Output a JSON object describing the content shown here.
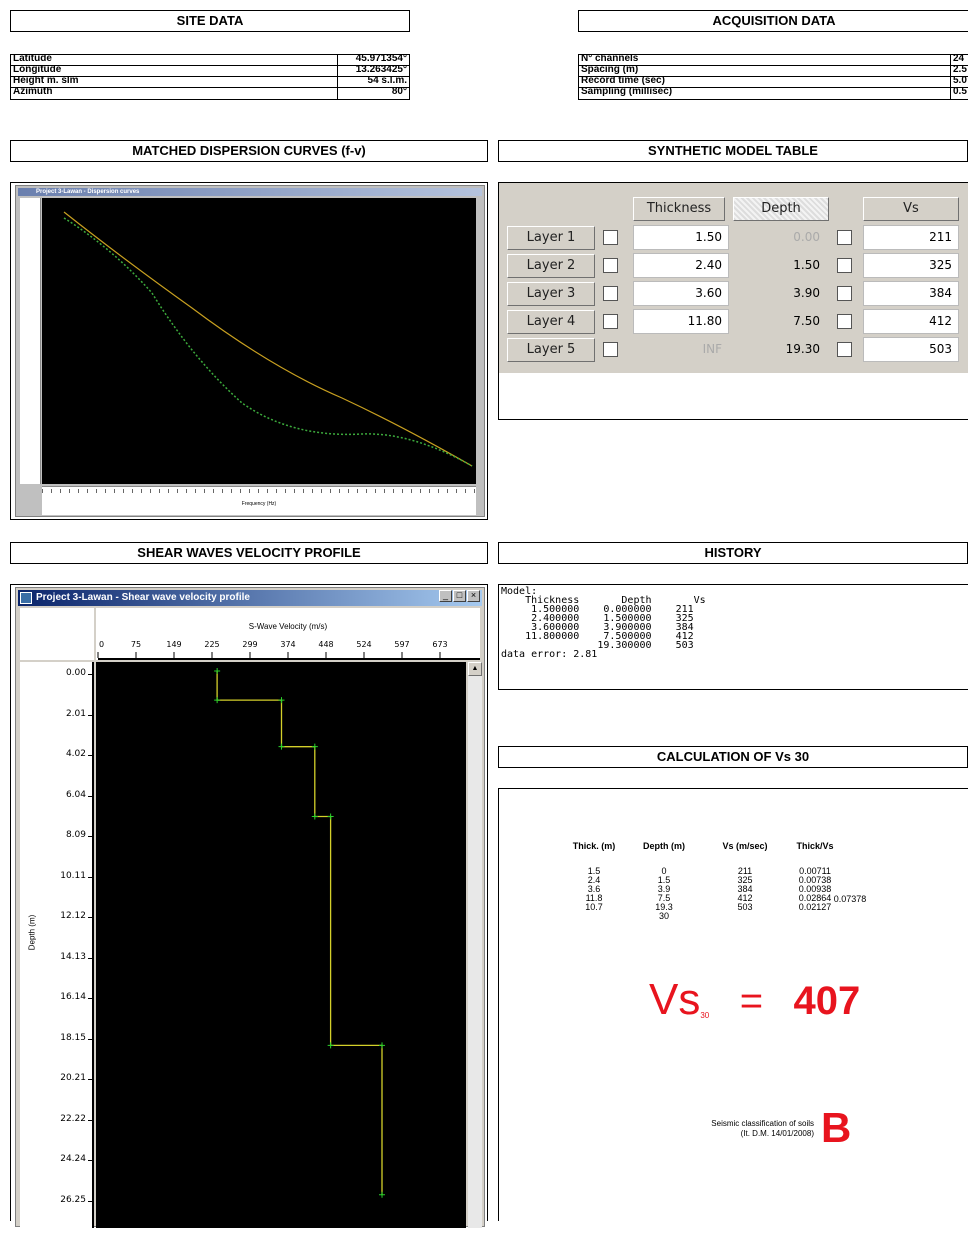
{
  "site": {
    "title": "SITE DATA",
    "rows": [
      {
        "label": "Latitude",
        "value": "45.971354°"
      },
      {
        "label": "Longitude",
        "value": "13.263425°"
      },
      {
        "label": "Height m. slm",
        "value": "54 s.l.m."
      },
      {
        "label": "Azimuth",
        "value": "80°"
      }
    ]
  },
  "acq": {
    "title": "ACQUISITION DATA",
    "rows": [
      {
        "label": "N° channels",
        "value": "24"
      },
      {
        "label": "Spacing (m)",
        "value": "2.5"
      },
      {
        "label": "Record time (sec)",
        "value": "5.0"
      },
      {
        "label": "Sampling (millisec)",
        "value": "0.5"
      }
    ]
  },
  "dispersion": {
    "title": "MATCHED DISPERSION CURVES (f-v)",
    "window_title": "Project 3-Lawan - Dispersion curves",
    "xlabel": "Frequency (Hz)"
  },
  "model": {
    "title": "SYNTHETIC MODEL TABLE",
    "col_thickness": "Thickness",
    "col_depth": "Depth",
    "col_vs": "Vs",
    "layers": [
      {
        "name": "Layer 1",
        "thickness": "1.50",
        "depth": "0.00",
        "vs": "211"
      },
      {
        "name": "Layer 2",
        "thickness": "2.40",
        "depth": "1.50",
        "vs": "325"
      },
      {
        "name": "Layer 3",
        "thickness": "3.60",
        "depth": "3.90",
        "vs": "384"
      },
      {
        "name": "Layer 4",
        "thickness": "11.80",
        "depth": "7.50",
        "vs": "412"
      },
      {
        "name": "Layer 5",
        "thickness": "INF",
        "depth": "19.30",
        "vs": "503"
      }
    ]
  },
  "profile": {
    "title": "SHEAR WAVES VELOCITY PROFILE",
    "window_title": "Project 3-Lawan - Shear wave velocity profile",
    "xlabel": "S-Wave Velocity (m/s)",
    "ylabel": "Depth (m)",
    "xticks": [
      "0",
      "75",
      "149",
      "225",
      "299",
      "374",
      "448",
      "524",
      "597",
      "673"
    ],
    "yticks": [
      "0.00",
      "2.01",
      "4.02",
      "6.04",
      "8.09",
      "10.11",
      "12.12",
      "14.13",
      "16.14",
      "18.15",
      "20.21",
      "22.22",
      "24.24",
      "26.25"
    ]
  },
  "history": {
    "title": "HISTORY",
    "text": "Model:\n    Thickness       Depth       Vs\n     1.500000    0.000000    211\n     2.400000    1.500000    325\n     3.600000    3.900000    384\n    11.800000    7.500000    412\n                19.300000    503\ndata error: 2.81"
  },
  "calc": {
    "title": "CALCULATION OF Vs 30",
    "headers": [
      "Thick. (m)",
      "Depth (m)",
      "Vs (m/sec)",
      "Thick/Vs"
    ],
    "rows": [
      [
        "1.5",
        "0",
        "211",
        "0.00711"
      ],
      [
        "2.4",
        "1.5",
        "325",
        "0.00738"
      ],
      [
        "3.6",
        "3.9",
        "384",
        "0.00938"
      ],
      [
        "11.8",
        "7.5",
        "412",
        "0.02864"
      ],
      [
        "10.7",
        "19.3",
        "503",
        "0.02127"
      ],
      [
        "",
        "30",
        "",
        ""
      ]
    ],
    "sum": "0.07378",
    "vs_label": "Vs",
    "vs_sub": "30",
    "vs_eq": "=",
    "vs_value": "407",
    "class_line1": "Seismic classification of soils",
    "class_line2": "(It. D.M. 14/01/2008)",
    "class_value": "B",
    "accent": "#e8141e"
  },
  "chart_data": {
    "type": "line",
    "series": [
      {
        "values": [
          {
            "vs": 211,
            "depth": 0
          },
          {
            "vs": 211,
            "depth": 1.5
          },
          {
            "vs": 325,
            "depth": 1.5
          },
          {
            "vs": 325,
            "depth": 3.9
          },
          {
            "vs": 384,
            "depth": 3.9
          },
          {
            "vs": 384,
            "depth": 7.5
          },
          {
            "vs": 412,
            "depth": 7.5
          },
          {
            "vs": 412,
            "depth": 19.3
          },
          {
            "vs": 503,
            "depth": 19.3
          },
          {
            "vs": 503,
            "depth": 27
          }
        ]
      }
    ],
    "xlim": [
      0,
      673
    ],
    "ylim": [
      0,
      26.25
    ],
    "xlabel": "S-Wave Velocity (m/s)",
    "ylabel": "Depth (m)"
  }
}
